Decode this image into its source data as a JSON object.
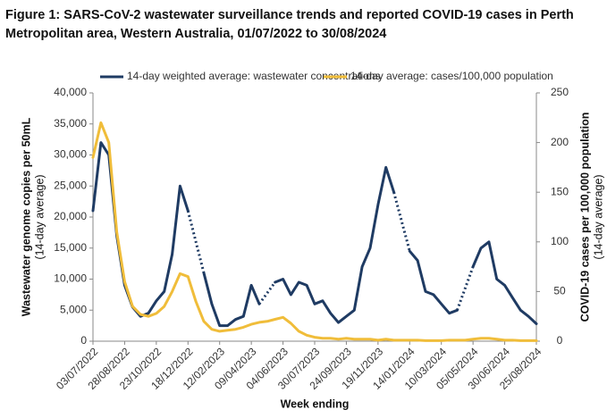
{
  "chart_data": {
    "type": "line",
    "title": [
      "Figure 1: SARS-CoV-2 wastewater surveillance trends and reported COVID-19 cases in Perth",
      "Metropolitan area, Western Australia, 01/07/2022 to 30/08/2024"
    ],
    "xlabel": "Week ending",
    "ylabel": [
      "Wastewater genome copies per 50mL",
      "(14-day average)"
    ],
    "y2label": [
      "COVID-19 cases per 100,000 population",
      "(14-day average)"
    ],
    "categories": [
      "03/07/2022",
      null,
      null,
      null,
      "28/08/2022",
      null,
      null,
      null,
      "23/10/2022",
      null,
      null,
      null,
      "18/12/2022",
      null,
      null,
      null,
      "12/02/2023",
      null,
      null,
      null,
      "09/04/2023",
      null,
      null,
      null,
      "04/06/2023",
      null,
      null,
      null,
      "30/07/2023",
      null,
      null,
      null,
      "24/09/2023",
      null,
      null,
      null,
      "19/11/2023",
      null,
      null,
      null,
      "14/01/2024",
      null,
      null,
      null,
      "10/03/2024",
      null,
      null,
      null,
      "05/05/2024",
      null,
      null,
      null,
      "30/06/2024",
      null,
      null,
      null,
      "25/08/2024"
    ],
    "series": [
      {
        "name": "14-day weighted average: wastewater concentrations",
        "color": "#1f3b63",
        "axis": "y",
        "gaps": "dotted",
        "values": [
          21000,
          32000,
          30000,
          17000,
          9000,
          5500,
          4000,
          4500,
          6500,
          8000,
          14000,
          25000,
          21000,
          null,
          11000,
          6000,
          2500,
          2500,
          3500,
          4000,
          9000,
          6000,
          null,
          9500,
          10000,
          7500,
          9500,
          9000,
          6000,
          6500,
          4500,
          3000,
          4000,
          5000,
          12000,
          15000,
          22000,
          28000,
          24000,
          null,
          14500,
          13000,
          8000,
          7500,
          6000,
          4500,
          5000,
          null,
          12000,
          15000,
          16000,
          10000,
          9000,
          7000,
          5000,
          4000,
          2800
        ]
      },
      {
        "name": "14-day average: cases/100,000 population",
        "color": "#f0bd3a",
        "axis": "y2",
        "values": [
          185,
          220,
          200,
          110,
          60,
          35,
          27,
          25,
          28,
          35,
          50,
          68,
          65,
          40,
          20,
          12,
          10,
          11,
          12,
          14,
          17,
          19,
          20,
          22,
          24,
          18,
          10,
          6,
          4,
          3,
          3,
          2,
          3,
          2,
          2,
          2,
          1,
          2,
          1,
          1,
          1,
          1,
          0.5,
          0.5,
          0.5,
          1,
          1,
          1,
          2,
          3,
          3,
          2,
          1,
          1,
          0.5,
          0.5,
          0.5
        ]
      }
    ],
    "ylim": [
      0,
      40000
    ],
    "yticks": [
      0,
      {
        "value": 5000,
        "label": "5,000"
      },
      {
        "value": 10000,
        "label": "10,000"
      },
      {
        "value": 15000,
        "label": "15,000"
      },
      {
        "value": 20000,
        "label": "20,000"
      },
      {
        "value": 25000,
        "label": "25,000"
      },
      {
        "value": 30000,
        "label": "30,000"
      },
      {
        "value": 35000,
        "label": "35,000"
      },
      {
        "value": 40000,
        "label": "40,000"
      }
    ],
    "y2lim": [
      0,
      250
    ],
    "y2ticks": [
      0,
      50,
      100,
      150,
      200,
      250
    ],
    "grid": false,
    "legend": "top"
  }
}
